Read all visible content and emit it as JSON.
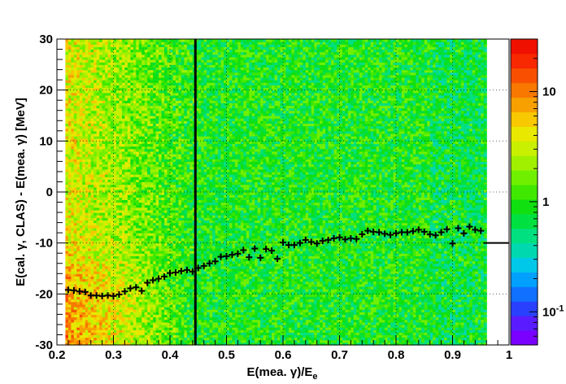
{
  "chart_data": {
    "type": "heatmap",
    "title": "",
    "xlabel": "E(mea. γ)/E",
    "xlabel_sub": "e",
    "ylabel": "E(cal. γ, CLAS) - E(mea.  γ) [MeV]",
    "xlim": [
      0.2,
      1.0
    ],
    "ylim": [
      -30,
      30
    ],
    "x_ticks": [
      "0.2",
      "0.3",
      "0.4",
      "0.5",
      "0.6",
      "0.7",
      "0.8",
      "0.9",
      "1"
    ],
    "y_ticks": [
      "-30",
      "-20",
      "-10",
      "0",
      "10",
      "20",
      "30"
    ],
    "heatmap_x_range": [
      0.215,
      0.96
    ],
    "colorbar": {
      "scale": "log",
      "labels": [
        "10",
        "1",
        "10"
      ],
      "label_exponents": [
        "",
        "",
        "-1"
      ],
      "colors": [
        "#7a00ff",
        "#5a1cff",
        "#2a40ff",
        "#1070ff",
        "#00a0ff",
        "#00c8e8",
        "#00d8b0",
        "#00e080",
        "#00e040",
        "#10e010",
        "#40e800",
        "#70f000",
        "#a0f000",
        "#c8f000",
        "#e8e800",
        "#f8c800",
        "#f8a000",
        "#f87800",
        "#f85000",
        "#f82800",
        "#f01000"
      ]
    },
    "vertical_lines": [
      0.445
    ],
    "series": [
      {
        "x": [
          0.22,
          0.23,
          0.24,
          0.25,
          0.26,
          0.27,
          0.28,
          0.29,
          0.3,
          0.31,
          0.32,
          0.33,
          0.34,
          0.35,
          0.36,
          0.37,
          0.38,
          0.39,
          0.4,
          0.41,
          0.42,
          0.43,
          0.44,
          0.45,
          0.46,
          0.47,
          0.48,
          0.49,
          0.5,
          0.51,
          0.52,
          0.53,
          0.54,
          0.55,
          0.56,
          0.57,
          0.58,
          0.59,
          0.6,
          0.61,
          0.62,
          0.63,
          0.64,
          0.65,
          0.66,
          0.67,
          0.68,
          0.69,
          0.7,
          0.71,
          0.72,
          0.73,
          0.74,
          0.75,
          0.76,
          0.77,
          0.78,
          0.79,
          0.8,
          0.81,
          0.82,
          0.83,
          0.84,
          0.85,
          0.86,
          0.87,
          0.88,
          0.89,
          0.9,
          0.91,
          0.92,
          0.93,
          0.94,
          0.95
        ],
        "y": [
          -19.2,
          -19.3,
          -19.5,
          -19.6,
          -20.3,
          -20.3,
          -20.4,
          -20.3,
          -20.4,
          -20.1,
          -19.5,
          -18.9,
          -18.7,
          -19.4,
          -17.8,
          -17.3,
          -17.0,
          -16.6,
          -15.9,
          -15.8,
          -15.5,
          -15.3,
          -15.6,
          -14.9,
          -14.5,
          -14.0,
          -13.6,
          -12.7,
          -12.6,
          -12.3,
          -12.1,
          -11.4,
          -12.8,
          -11.1,
          -12.9,
          -11.2,
          -11.5,
          -13.1,
          -9.9,
          -10.4,
          -10.4,
          -10.0,
          -9.4,
          -9.8,
          -10.1,
          -9.6,
          -9.4,
          -9.1,
          -8.9,
          -9.3,
          -9.1,
          -9.2,
          -8.3,
          -7.6,
          -7.8,
          -7.9,
          -8.2,
          -8.4,
          -8.1,
          -7.9,
          -7.9,
          -7.7,
          -7.4,
          -7.8,
          -8.3,
          -8.5,
          -7.9,
          -7.3,
          -10.1,
          -7.1,
          -8.1,
          -6.8,
          -7.4,
          -7.6
        ]
      },
      {
        "name": "",
        "x": [
          0.955,
          1.0
        ],
        "y": [
          -10,
          -10
        ]
      }
    ],
    "grid": "dotted vertical/horizontal",
    "legend": "none"
  }
}
